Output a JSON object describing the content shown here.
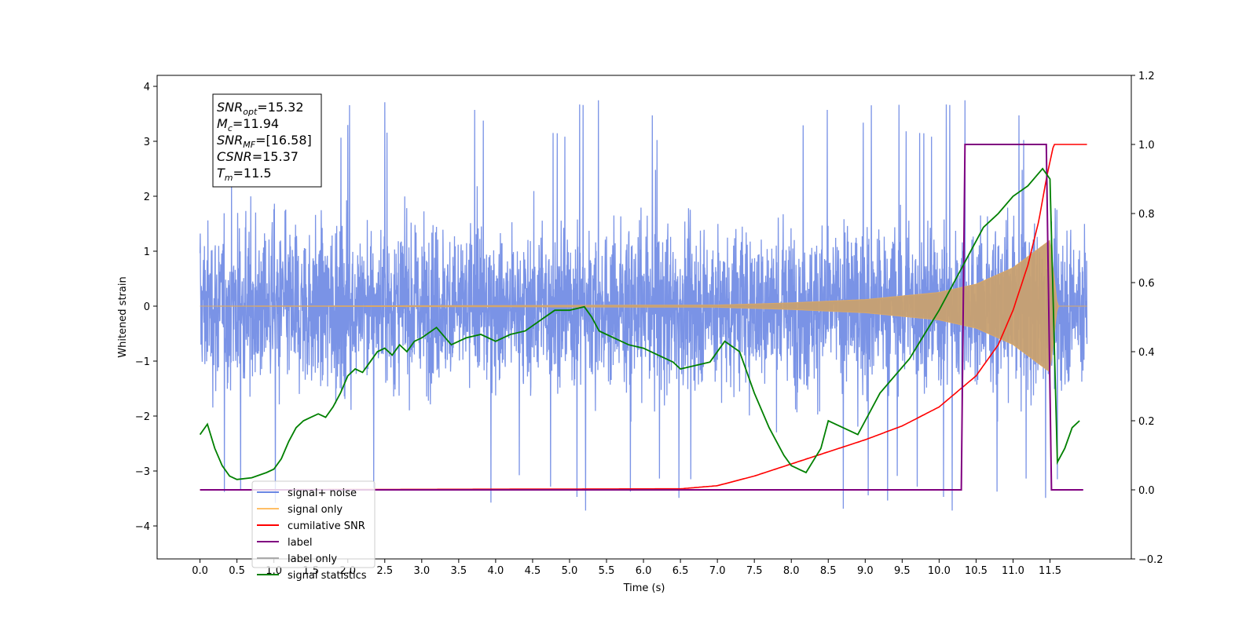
{
  "chart_data": {
    "type": "line",
    "xlabel": "Time (s)",
    "ylabel": "Whitened strain",
    "x_ticks": [
      "0.0",
      "0.5",
      "1.0",
      "1.5",
      "2.0",
      "2.5",
      "3.0",
      "3.5",
      "4.0",
      "4.5",
      "5.0",
      "5.5",
      "6.0",
      "6.5",
      "7.0",
      "7.5",
      "8.0",
      "8.5",
      "9.0",
      "9.5",
      "10.0",
      "10.5",
      "11.0",
      "11.5"
    ],
    "xlim": [
      -0.58,
      12.6
    ],
    "ylim_left": [
      -4.6,
      4.2
    ],
    "ylim_right": [
      -0.2,
      1.2
    ],
    "y_ticks_left": [
      "4",
      "3",
      "2",
      "1",
      "0",
      "−1",
      "−2",
      "−3",
      "−4"
    ],
    "y_ticks_right": [
      "1.2",
      "1.0",
      "0.8",
      "0.6",
      "0.4",
      "0.2",
      "0.0",
      "−0.2"
    ],
    "info_box": {
      "lines": [
        {
          "main": "SNR",
          "sub": "opt",
          "value": "=15.32"
        },
        {
          "main": "M",
          "sub": "c",
          "value": "=11.94"
        },
        {
          "main": "SNR",
          "sub": "MF",
          "value": "=[16.58]"
        },
        {
          "main": "CSNR",
          "sub": "",
          "value": "=15.37"
        },
        {
          "main": "T",
          "sub": "m",
          "value": "=11.5"
        }
      ]
    },
    "legend": [
      {
        "label": "signal+ noise",
        "color": "#6b87e3"
      },
      {
        "label": "signal only",
        "color": "#ffbf66"
      },
      {
        "label": "cumilative SNR",
        "color": "#ff0000"
      },
      {
        "label": "label",
        "color": "#800080"
      },
      {
        "label": "label only",
        "color": "#aaaaaa"
      },
      {
        "label": "signal statistics",
        "color": "#008000"
      }
    ],
    "series": [
      {
        "name": "signal+ noise",
        "axis": "left",
        "color": "#6b87e3",
        "description": "noise band approx ±2 with peaks to ±3.8, t = 0.0 to 12.0"
      },
      {
        "name": "signal only",
        "axis": "left",
        "color": "#c8a070",
        "x": [
          0,
          7.0,
          8.0,
          9.0,
          10.0,
          10.5,
          11.0,
          11.3,
          11.5,
          11.6,
          12.0
        ],
        "amplitude": [
          0.0,
          0.02,
          0.06,
          0.12,
          0.25,
          0.4,
          0.7,
          1.0,
          1.2,
          0.0,
          0.0
        ]
      },
      {
        "name": "cumilative SNR",
        "axis": "right",
        "color": "#ff0000",
        "x": [
          0,
          6.5,
          7.0,
          7.5,
          8.0,
          8.5,
          9.0,
          9.5,
          10.0,
          10.5,
          10.8,
          11.0,
          11.2,
          11.35,
          11.45,
          11.55,
          12.0
        ],
        "y": [
          0.0,
          0.003,
          0.012,
          0.04,
          0.075,
          0.11,
          0.145,
          0.185,
          0.24,
          0.33,
          0.42,
          0.52,
          0.65,
          0.78,
          0.9,
          1.0,
          1.0
        ]
      },
      {
        "name": "label",
        "axis": "right",
        "color": "#800080",
        "x": [
          0,
          10.3,
          10.35,
          11.45,
          11.52,
          11.95
        ],
        "y": [
          0.0,
          0.0,
          1.0,
          1.0,
          0.0,
          0.0
        ]
      },
      {
        "name": "signal statistics",
        "axis": "right",
        "color": "#008000",
        "x": [
          0,
          0.1,
          0.2,
          0.3,
          0.4,
          0.5,
          0.7,
          0.9,
          1.0,
          1.1,
          1.2,
          1.3,
          1.4,
          1.5,
          1.6,
          1.7,
          1.8,
          1.9,
          2.0,
          2.1,
          2.2,
          2.3,
          2.4,
          2.5,
          2.6,
          2.7,
          2.8,
          2.9,
          3.0,
          3.2,
          3.4,
          3.6,
          3.8,
          4.0,
          4.2,
          4.4,
          4.6,
          4.8,
          5.0,
          5.2,
          5.3,
          5.4,
          5.6,
          5.8,
          6.0,
          6.2,
          6.4,
          6.5,
          6.7,
          6.9,
          7.1,
          7.3,
          7.5,
          7.7,
          7.9,
          8.0,
          8.2,
          8.4,
          8.5,
          8.7,
          8.9,
          9.0,
          9.2,
          9.4,
          9.6,
          9.8,
          10.0,
          10.2,
          10.4,
          10.6,
          10.8,
          11.0,
          11.2,
          11.4,
          11.5,
          11.6,
          11.7,
          11.8,
          11.9
        ],
        "y": [
          0.16,
          0.19,
          0.12,
          0.07,
          0.04,
          0.03,
          0.035,
          0.05,
          0.06,
          0.09,
          0.14,
          0.18,
          0.2,
          0.21,
          0.22,
          0.21,
          0.24,
          0.28,
          0.33,
          0.35,
          0.34,
          0.37,
          0.4,
          0.41,
          0.39,
          0.42,
          0.4,
          0.43,
          0.44,
          0.47,
          0.42,
          0.44,
          0.45,
          0.43,
          0.45,
          0.46,
          0.49,
          0.52,
          0.52,
          0.53,
          0.5,
          0.46,
          0.44,
          0.42,
          0.41,
          0.39,
          0.37,
          0.35,
          0.36,
          0.37,
          0.43,
          0.4,
          0.28,
          0.18,
          0.1,
          0.07,
          0.05,
          0.12,
          0.2,
          0.18,
          0.16,
          0.2,
          0.28,
          0.33,
          0.38,
          0.45,
          0.52,
          0.6,
          0.68,
          0.76,
          0.8,
          0.85,
          0.88,
          0.93,
          0.9,
          0.08,
          0.12,
          0.18,
          0.2
        ]
      }
    ]
  }
}
